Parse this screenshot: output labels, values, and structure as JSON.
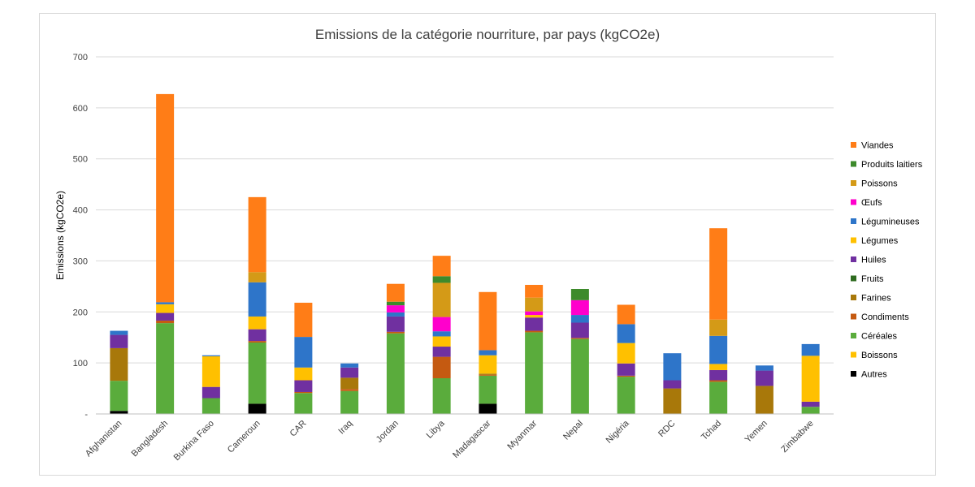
{
  "chart_data": {
    "type": "bar",
    "stacked": true,
    "title": "Emissions de la catégorie nourriture, par pays (kgCO2e)",
    "ylabel": "Emissions (kgCO2e)",
    "xlabel": "",
    "ylim": [
      0,
      700
    ],
    "yticks": [
      0,
      100,
      200,
      300,
      400,
      500,
      600,
      700
    ],
    "ytick_labels": [
      "-",
      "100",
      "200",
      "300",
      "400",
      "500",
      "600",
      "700"
    ],
    "grid": true,
    "legend_position": "right",
    "categories": [
      "Afghanistan",
      "Bangladesh",
      "Burkina Faso",
      "Cameroun",
      "CAR",
      "Iraq",
      "Jordan",
      "Libya",
      "Madagascar",
      "Myanmar",
      "Nepal",
      "Nigéria",
      "RDC",
      "Tchad",
      "Yemen",
      "Zimbabwe"
    ],
    "series": [
      {
        "name": "Autres",
        "color": "#000000",
        "values": [
          6,
          0,
          0,
          20,
          0,
          0,
          0,
          0,
          20,
          0,
          0,
          0,
          0,
          0,
          0,
          0
        ]
      },
      {
        "name": "Boissons",
        "color": "#ffc000",
        "values": [
          0,
          0,
          0,
          0,
          0,
          0,
          0,
          0,
          0,
          0,
          0,
          0,
          0,
          0,
          0,
          0
        ]
      },
      {
        "name": "Céréales",
        "color": "#5aac3c",
        "values": [
          59,
          178,
          31,
          120,
          41,
          45,
          158,
          70,
          55,
          160,
          147,
          73,
          0,
          63,
          0,
          14
        ]
      },
      {
        "name": "Condiments",
        "color": "#c55a11",
        "values": [
          0,
          5,
          0,
          3,
          2,
          4,
          3,
          42,
          2,
          3,
          2,
          2,
          0,
          3,
          0,
          0
        ]
      },
      {
        "name": "Farines",
        "color": "#a8780a",
        "values": [
          64,
          0,
          0,
          0,
          0,
          22,
          0,
          0,
          2,
          0,
          0,
          0,
          50,
          0,
          55,
          0
        ]
      },
      {
        "name": "Fruits",
        "color": "#2e6b1f",
        "values": [
          0,
          0,
          0,
          0,
          0,
          0,
          0,
          0,
          0,
          0,
          0,
          0,
          0,
          0,
          0,
          0
        ]
      },
      {
        "name": "Huiles",
        "color": "#7030a0",
        "values": [
          26,
          15,
          22,
          23,
          23,
          20,
          30,
          20,
          0,
          26,
          30,
          24,
          16,
          20,
          30,
          10
        ]
      },
      {
        "name": "Légumes",
        "color": "#ffc000",
        "values": [
          0,
          17,
          60,
          25,
          25,
          0,
          0,
          20,
          36,
          5,
          0,
          40,
          0,
          12,
          0,
          90
        ]
      },
      {
        "name": "Légumineuses",
        "color": "#2e75c9",
        "values": [
          8,
          4,
          2,
          67,
          60,
          8,
          8,
          10,
          10,
          0,
          15,
          37,
          53,
          55,
          10,
          23
        ]
      },
      {
        "name": "Œufs",
        "color": "#ff00cc",
        "values": [
          0,
          0,
          0,
          0,
          0,
          0,
          14,
          28,
          0,
          7,
          29,
          0,
          0,
          0,
          0,
          0
        ]
      },
      {
        "name": "Poissons",
        "color": "#d49a17",
        "values": [
          0,
          0,
          0,
          20,
          0,
          0,
          0,
          67,
          0,
          27,
          0,
          0,
          0,
          32,
          0,
          0
        ]
      },
      {
        "name": "Produits laitiers",
        "color": "#3d8a2b",
        "values": [
          0,
          0,
          0,
          0,
          0,
          0,
          7,
          13,
          0,
          0,
          22,
          0,
          0,
          0,
          0,
          0
        ]
      },
      {
        "name": "Viandes",
        "color": "#ff7d17",
        "values": [
          0,
          408,
          0,
          147,
          67,
          0,
          35,
          40,
          114,
          25,
          0,
          38,
          0,
          179,
          0,
          0
        ]
      }
    ],
    "legend_order": [
      "Viandes",
      "Produits laitiers",
      "Poissons",
      "Œufs",
      "Légumineuses",
      "Légumes",
      "Huiles",
      "Fruits",
      "Farines",
      "Condiments",
      "Céréales",
      "Boissons",
      "Autres"
    ]
  }
}
